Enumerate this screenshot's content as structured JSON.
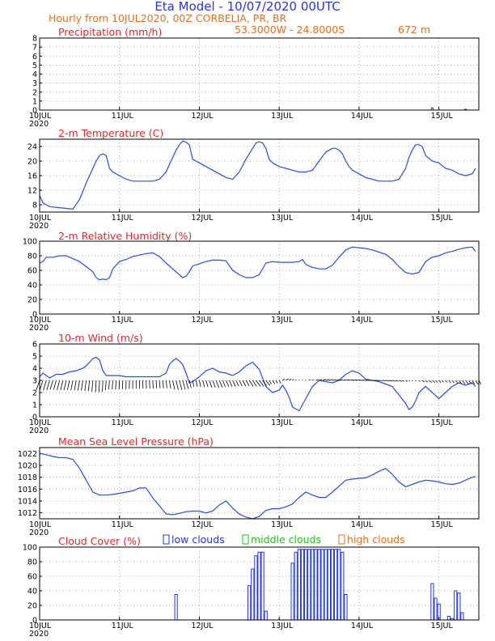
{
  "header": {
    "title": "Eta Model - 10/07/2020 00UTC",
    "subtitle_left": "Hourly from 10JUL2020, 00Z  CORBELIA, PR, BR",
    "coords": "53.3000W - 24.8000S",
    "elevation": "672  m"
  },
  "x_axis": {
    "labels": [
      "10JUL",
      "11JUL",
      "12JUL",
      "13JUL",
      "14JUL",
      "15JUL"
    ],
    "year": "2020",
    "hours_total": 132
  },
  "colors": {
    "series": "#2a4fe0",
    "title": "#e02b2b",
    "header": "#2536e6",
    "subheader": "#e7701e",
    "low": "#2536e6",
    "middle": "#21c11e",
    "high": "#e7701e"
  },
  "chart_data": [
    {
      "id": "precip",
      "type": "bar",
      "title": "Precipitation (mm/h)",
      "ylim": [
        0,
        8
      ],
      "yticks": [
        0,
        1,
        2,
        3,
        4,
        5,
        6,
        7,
        8
      ],
      "x": [
        118,
        128
      ],
      "values": [
        0.25,
        0.1
      ]
    },
    {
      "id": "temp",
      "type": "line",
      "title": "2-m Temperature (C)",
      "ylim": [
        6,
        26
      ],
      "yticks": [
        8,
        12,
        16,
        20,
        24
      ],
      "x": [
        0,
        1,
        3,
        6,
        8,
        10,
        12,
        14,
        16,
        17,
        18,
        19,
        20,
        21,
        22,
        24,
        26,
        28,
        30,
        32,
        34,
        36,
        38,
        40,
        41,
        42,
        43,
        44,
        45,
        46,
        48,
        50,
        52,
        54,
        56,
        58,
        60,
        62,
        64,
        65,
        66,
        67,
        68,
        69,
        70,
        72,
        74,
        76,
        78,
        80,
        82,
        84,
        86,
        88,
        89,
        90,
        91,
        92,
        93,
        94,
        96,
        98,
        100,
        102,
        104,
        106,
        108,
        110,
        111,
        112,
        113,
        114,
        115,
        116,
        118,
        120,
        122,
        124,
        126,
        128,
        130,
        131
      ],
      "values": [
        10.5,
        8.5,
        7.5,
        7.2,
        7.0,
        6.8,
        9.5,
        14.0,
        18.0,
        20.0,
        21.5,
        22.0,
        21.5,
        18.0,
        17.0,
        16.0,
        15.0,
        14.5,
        14.5,
        14.5,
        14.5,
        15.0,
        17.0,
        21.0,
        23.0,
        24.5,
        25.5,
        25.2,
        24.5,
        20.5,
        19.5,
        18.5,
        17.5,
        16.5,
        15.5,
        15.0,
        17.0,
        20.5,
        23.5,
        25.0,
        25.3,
        25.0,
        23.5,
        20.5,
        19.5,
        18.5,
        18.0,
        17.5,
        17.0,
        17.0,
        17.5,
        20.0,
        22.5,
        23.5,
        23.5,
        23.0,
        22.0,
        20.0,
        18.5,
        17.5,
        16.5,
        15.5,
        15.0,
        14.5,
        14.5,
        14.5,
        15.0,
        18.0,
        21.0,
        23.0,
        24.5,
        24.5,
        24.0,
        21.5,
        20.0,
        19.5,
        18.0,
        17.5,
        16.5,
        16.0,
        16.5,
        18.0
      ]
    },
    {
      "id": "rh",
      "type": "line",
      "title": "2-m Relative Humidity (%)",
      "ylim": [
        0,
        100
      ],
      "yticks": [
        0,
        20,
        40,
        60,
        80,
        100
      ],
      "x": [
        0,
        1,
        2,
        4,
        6,
        8,
        10,
        12,
        14,
        16,
        17,
        18,
        19,
        20,
        21,
        22,
        24,
        26,
        28,
        30,
        32,
        34,
        36,
        38,
        40,
        42,
        43,
        44,
        45,
        46,
        48,
        50,
        52,
        54,
        56,
        58,
        60,
        62,
        64,
        66,
        68,
        70,
        72,
        74,
        76,
        78,
        79,
        80,
        81,
        82,
        84,
        86,
        88,
        90,
        92,
        94,
        96,
        98,
        100,
        102,
        104,
        106,
        108,
        110,
        112,
        114,
        116,
        118,
        120,
        122,
        124,
        126,
        128,
        130,
        131
      ],
      "values": [
        70,
        72,
        78,
        78,
        80,
        80,
        76,
        72,
        65,
        58,
        50,
        47,
        48,
        47,
        50,
        62,
        72,
        75,
        79,
        81,
        83,
        84,
        79,
        70,
        62,
        54,
        50,
        52,
        58,
        66,
        69,
        72,
        74,
        74,
        73,
        60,
        54,
        50,
        50,
        54,
        70,
        72,
        71,
        71,
        71,
        72,
        75,
        68,
        66,
        64,
        62,
        62,
        67,
        78,
        88,
        92,
        91,
        90,
        88,
        85,
        82,
        75,
        65,
        57,
        55,
        57,
        72,
        78,
        80,
        84,
        86,
        89,
        91,
        92,
        86
      ]
    },
    {
      "id": "wind",
      "type": "line",
      "title": "10-m Wind (m/s)",
      "ylim": [
        0,
        6
      ],
      "yticks": [
        0,
        1,
        2,
        3,
        4,
        5,
        6
      ],
      "x": [
        0,
        1,
        3,
        5,
        7,
        9,
        11,
        13,
        14,
        15,
        16,
        17,
        18,
        19,
        20,
        22,
        24,
        26,
        28,
        30,
        32,
        34,
        36,
        38,
        39,
        40,
        41,
        42,
        43,
        44,
        45,
        46,
        48,
        50,
        52,
        54,
        56,
        58,
        60,
        62,
        64,
        66,
        68,
        70,
        72,
        73,
        74,
        75,
        76,
        78,
        80,
        82,
        84,
        86,
        88,
        90,
        92,
        94,
        96,
        98,
        100,
        102,
        104,
        106,
        108,
        110,
        111,
        112,
        113,
        114,
        116,
        118,
        120,
        122,
        124,
        126,
        128,
        130,
        131
      ],
      "values": [
        3.3,
        3.6,
        3.2,
        3.5,
        3.5,
        3.7,
        3.8,
        4.0,
        4.2,
        4.5,
        4.8,
        4.9,
        4.7,
        3.8,
        3.4,
        3.4,
        3.4,
        3.3,
        3.3,
        3.3,
        3.3,
        3.3,
        3.3,
        3.6,
        4.3,
        4.6,
        4.8,
        4.6,
        4.3,
        3.6,
        2.8,
        2.9,
        3.3,
        3.8,
        4.0,
        3.7,
        3.6,
        3.4,
        3.7,
        4.2,
        4.5,
        3.9,
        2.5,
        2.0,
        2.2,
        2.6,
        2.2,
        1.6,
        0.8,
        0.5,
        1.5,
        2.5,
        3.0,
        2.9,
        2.8,
        3.0,
        3.5,
        3.8,
        3.6,
        3.1,
        3.0,
        2.9,
        2.7,
        2.5,
        1.8,
        1.1,
        0.6,
        0.8,
        1.3,
        2.0,
        2.5,
        2.0,
        1.5,
        2.0,
        2.5,
        2.8,
        2.6,
        2.8,
        2.5
      ]
    },
    {
      "id": "mslp",
      "type": "line",
      "title": "Mean Sea Level Pressure (hPa)",
      "ylim": [
        1011,
        1023
      ],
      "yticks": [
        1012,
        1014,
        1016,
        1018,
        1020,
        1022
      ],
      "x": [
        0,
        2,
        4,
        6,
        8,
        10,
        12,
        14,
        16,
        18,
        20,
        22,
        24,
        26,
        28,
        30,
        32,
        34,
        36,
        38,
        40,
        42,
        44,
        46,
        48,
        50,
        52,
        54,
        56,
        58,
        60,
        62,
        64,
        66,
        68,
        70,
        72,
        74,
        76,
        78,
        80,
        82,
        84,
        86,
        88,
        90,
        92,
        94,
        96,
        98,
        100,
        102,
        104,
        106,
        108,
        110,
        112,
        114,
        116,
        118,
        120,
        122,
        124,
        126,
        128,
        130,
        131
      ],
      "values": [
        1022.0,
        1021.8,
        1021.5,
        1021.3,
        1021.3,
        1021.0,
        1019.5,
        1017.5,
        1015.5,
        1015.0,
        1015.0,
        1015.1,
        1015.3,
        1015.5,
        1015.7,
        1016.2,
        1016.2,
        1014.5,
        1013.2,
        1011.8,
        1011.7,
        1011.9,
        1012.2,
        1012.3,
        1012.3,
        1012.0,
        1012.3,
        1013.3,
        1014.0,
        1012.8,
        1011.8,
        1011.3,
        1011.0,
        1011.4,
        1012.4,
        1012.7,
        1012.7,
        1013.0,
        1013.5,
        1014.6,
        1015.5,
        1015.0,
        1014.6,
        1014.6,
        1015.5,
        1016.5,
        1017.5,
        1017.7,
        1017.8,
        1017.9,
        1018.4,
        1019.0,
        1019.5,
        1018.5,
        1017.2,
        1016.4,
        1016.8,
        1017.2,
        1017.5,
        1017.4,
        1017.2,
        1016.9,
        1016.8,
        1017.0,
        1017.5,
        1018.0,
        1018.1
      ]
    },
    {
      "id": "cloud",
      "type": "bar",
      "title": "Cloud Cover (%)",
      "legend": [
        "low clouds",
        "middle clouds",
        "high clouds"
      ],
      "ylim": [
        0,
        100
      ],
      "yticks": [
        0,
        20,
        40,
        60,
        80,
        100
      ],
      "x": [
        41,
        63,
        64,
        65,
        66,
        67,
        68,
        76,
        77,
        78,
        79,
        80,
        81,
        82,
        83,
        84,
        85,
        86,
        87,
        88,
        89,
        90,
        91,
        92,
        118,
        119,
        120,
        123,
        124,
        125,
        126,
        127
      ],
      "values": [
        35,
        47,
        70,
        88,
        93,
        93,
        12,
        78,
        93,
        97,
        97,
        97,
        97,
        97,
        97,
        97,
        97,
        97,
        97,
        97,
        97,
        97,
        93,
        35,
        50,
        30,
        22,
        5,
        2,
        40,
        37,
        10
      ]
    }
  ]
}
